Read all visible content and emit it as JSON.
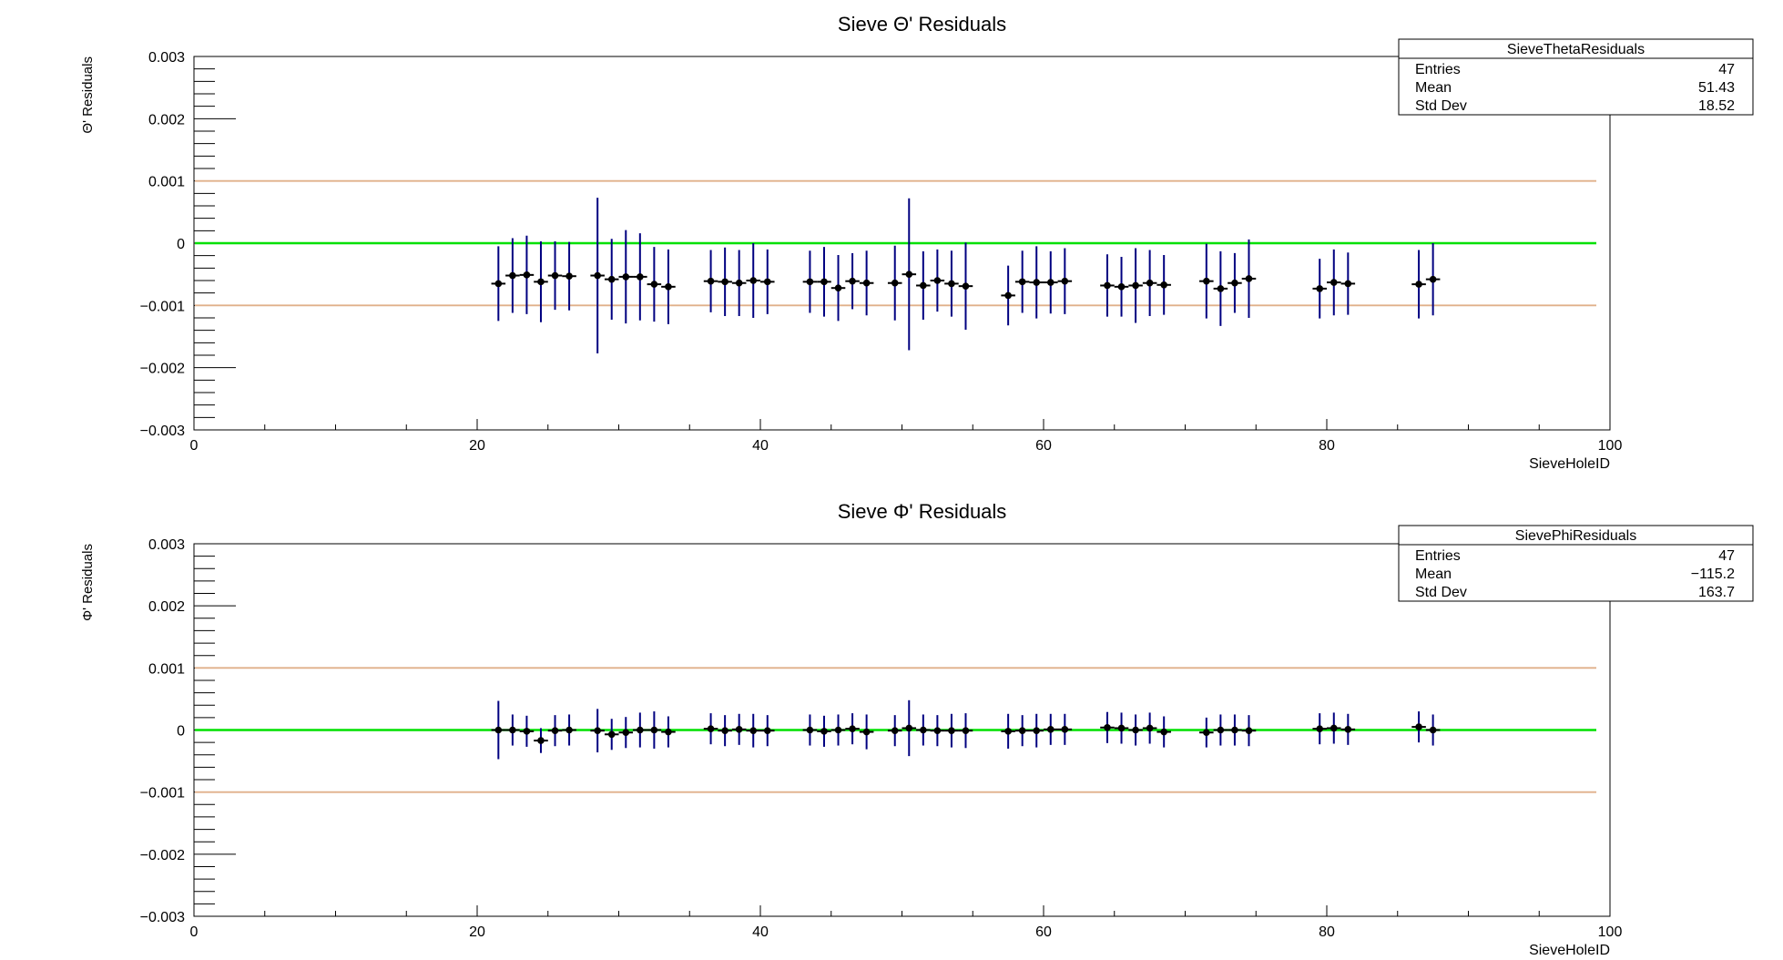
{
  "chart_data": [
    {
      "type": "scatter",
      "title": "Sieve Θ' Residuals",
      "xlabel": "SieveHoleID",
      "ylabel": "Θ' Residuals",
      "xlim": [
        0,
        100
      ],
      "ylim": [
        -0.003,
        0.003
      ],
      "x_ticks": [
        "0",
        "20",
        "40",
        "60",
        "80",
        "100"
      ],
      "y_ticks": [
        "0.003",
        "0.002",
        "0.001",
        "0",
        "−0.001",
        "−0.002",
        "−0.003"
      ],
      "grid": false,
      "reference_lines": [
        {
          "y": 0.001,
          "color": "#e0b08a"
        },
        {
          "y": 0.0,
          "color": "#00e000"
        },
        {
          "y": -0.001,
          "color": "#e0b08a"
        }
      ],
      "marker_color": "#000000",
      "errorbar_color": "#000080",
      "stats_box": {
        "name": "SieveThetaResiduals",
        "rows": [
          {
            "label": "Entries",
            "value": "47"
          },
          {
            "label": "Mean",
            "value": "51.43"
          },
          {
            "label": "Std Dev",
            "value": "18.52"
          }
        ]
      },
      "points": [
        {
          "x": 21.5,
          "y": -0.00065,
          "err": 0.0006
        },
        {
          "x": 22.5,
          "y": -0.00052,
          "err": 0.0006
        },
        {
          "x": 23.5,
          "y": -0.00051,
          "err": 0.00063
        },
        {
          "x": 24.5,
          "y": -0.00062,
          "err": 0.00065
        },
        {
          "x": 25.5,
          "y": -0.00052,
          "err": 0.00055
        },
        {
          "x": 26.5,
          "y": -0.00053,
          "err": 0.00055
        },
        {
          "x": 28.5,
          "y": -0.00052,
          "err": 0.00125
        },
        {
          "x": 29.5,
          "y": -0.00058,
          "err": 0.00065
        },
        {
          "x": 30.5,
          "y": -0.00054,
          "err": 0.00075
        },
        {
          "x": 31.5,
          "y": -0.00054,
          "err": 0.0007
        },
        {
          "x": 32.5,
          "y": -0.00066,
          "err": 0.0006
        },
        {
          "x": 33.5,
          "y": -0.0007,
          "err": 0.0006
        },
        {
          "x": 36.5,
          "y": -0.00061,
          "err": 0.0005
        },
        {
          "x": 37.5,
          "y": -0.00062,
          "err": 0.00055
        },
        {
          "x": 38.5,
          "y": -0.00064,
          "err": 0.00053
        },
        {
          "x": 39.5,
          "y": -0.0006,
          "err": 0.0006
        },
        {
          "x": 40.5,
          "y": -0.00062,
          "err": 0.00052
        },
        {
          "x": 43.5,
          "y": -0.00062,
          "err": 0.0005
        },
        {
          "x": 44.5,
          "y": -0.00062,
          "err": 0.00056
        },
        {
          "x": 45.5,
          "y": -0.00072,
          "err": 0.00053
        },
        {
          "x": 46.5,
          "y": -0.00061,
          "err": 0.00045
        },
        {
          "x": 47.5,
          "y": -0.00064,
          "err": 0.00052
        },
        {
          "x": 49.5,
          "y": -0.00064,
          "err": 0.0006
        },
        {
          "x": 50.5,
          "y": -0.0005,
          "err": 0.00122
        },
        {
          "x": 51.5,
          "y": -0.00068,
          "err": 0.00055
        },
        {
          "x": 52.5,
          "y": -0.0006,
          "err": 0.0005
        },
        {
          "x": 53.5,
          "y": -0.00065,
          "err": 0.00053
        },
        {
          "x": 54.5,
          "y": -0.00069,
          "err": 0.0007
        },
        {
          "x": 57.5,
          "y": -0.00084,
          "err": 0.00048
        },
        {
          "x": 58.5,
          "y": -0.00062,
          "err": 0.0005
        },
        {
          "x": 59.5,
          "y": -0.00063,
          "err": 0.00058
        },
        {
          "x": 60.5,
          "y": -0.00063,
          "err": 0.0005
        },
        {
          "x": 61.5,
          "y": -0.00061,
          "err": 0.00053
        },
        {
          "x": 64.5,
          "y": -0.00068,
          "err": 0.0005
        },
        {
          "x": 65.5,
          "y": -0.0007,
          "err": 0.00048
        },
        {
          "x": 66.5,
          "y": -0.00068,
          "err": 0.0006
        },
        {
          "x": 67.5,
          "y": -0.00064,
          "err": 0.00053
        },
        {
          "x": 68.5,
          "y": -0.00067,
          "err": 0.00048
        },
        {
          "x": 71.5,
          "y": -0.00061,
          "err": 0.0006
        },
        {
          "x": 72.5,
          "y": -0.00073,
          "err": 0.0006
        },
        {
          "x": 73.5,
          "y": -0.00064,
          "err": 0.00048
        },
        {
          "x": 74.5,
          "y": -0.00057,
          "err": 0.00063
        },
        {
          "x": 79.5,
          "y": -0.00073,
          "err": 0.00048
        },
        {
          "x": 80.5,
          "y": -0.00063,
          "err": 0.00053
        },
        {
          "x": 81.5,
          "y": -0.00065,
          "err": 0.0005
        },
        {
          "x": 86.5,
          "y": -0.00066,
          "err": 0.00055
        },
        {
          "x": 87.5,
          "y": -0.00058,
          "err": 0.00058
        }
      ]
    },
    {
      "type": "scatter",
      "title": "Sieve Φ' Residuals",
      "xlabel": "SieveHoleID",
      "ylabel": "Φ' Residuals",
      "xlim": [
        0,
        100
      ],
      "ylim": [
        -0.003,
        0.003
      ],
      "x_ticks": [
        "0",
        "20",
        "40",
        "60",
        "80",
        "100"
      ],
      "y_ticks": [
        "0.003",
        "0.002",
        "0.001",
        "0",
        "−0.001",
        "−0.002",
        "−0.003"
      ],
      "grid": false,
      "reference_lines": [
        {
          "y": 0.001,
          "color": "#e0b08a"
        },
        {
          "y": 0.0,
          "color": "#00e000"
        },
        {
          "y": -0.001,
          "color": "#e0b08a"
        }
      ],
      "marker_color": "#000000",
      "errorbar_color": "#000080",
      "stats_box": {
        "name": "SievePhiResiduals",
        "rows": [
          {
            "label": "Entries",
            "value": "47"
          },
          {
            "label": "Mean",
            "value": "−115.2"
          },
          {
            "label": "Std Dev",
            "value": "163.7"
          }
        ]
      },
      "points": [
        {
          "x": 21.5,
          "y": 0.0,
          "err": 0.00047
        },
        {
          "x": 22.5,
          "y": 0.0,
          "err": 0.00025
        },
        {
          "x": 23.5,
          "y": -2e-05,
          "err": 0.00025
        },
        {
          "x": 24.5,
          "y": -0.00017,
          "err": 0.0002
        },
        {
          "x": 25.5,
          "y": -1e-05,
          "err": 0.00025
        },
        {
          "x": 26.5,
          "y": 0.0,
          "err": 0.00025
        },
        {
          "x": 28.5,
          "y": -1e-05,
          "err": 0.00035
        },
        {
          "x": 29.5,
          "y": -7e-05,
          "err": 0.00025
        },
        {
          "x": 30.5,
          "y": -4e-05,
          "err": 0.00025
        },
        {
          "x": 31.5,
          "y": 0.0,
          "err": 0.00028
        },
        {
          "x": 32.5,
          "y": 0.0,
          "err": 0.0003
        },
        {
          "x": 33.5,
          "y": -3e-05,
          "err": 0.00025
        },
        {
          "x": 36.5,
          "y": 2e-05,
          "err": 0.00025
        },
        {
          "x": 37.5,
          "y": -1e-05,
          "err": 0.00025
        },
        {
          "x": 38.5,
          "y": 1e-05,
          "err": 0.00025
        },
        {
          "x": 39.5,
          "y": -1e-05,
          "err": 0.00027
        },
        {
          "x": 40.5,
          "y": -1e-05,
          "err": 0.00025
        },
        {
          "x": 43.5,
          "y": 0.0,
          "err": 0.00025
        },
        {
          "x": 44.5,
          "y": -2e-05,
          "err": 0.00025
        },
        {
          "x": 45.5,
          "y": 0.0,
          "err": 0.00025
        },
        {
          "x": 46.5,
          "y": 2e-05,
          "err": 0.00025
        },
        {
          "x": 47.5,
          "y": -3e-05,
          "err": 0.00028
        },
        {
          "x": 49.5,
          "y": -1e-05,
          "err": 0.00025
        },
        {
          "x": 50.5,
          "y": 3e-05,
          "err": 0.00045
        },
        {
          "x": 51.5,
          "y": 0.0,
          "err": 0.00025
        },
        {
          "x": 52.5,
          "y": -1e-05,
          "err": 0.00025
        },
        {
          "x": 53.5,
          "y": -1e-05,
          "err": 0.00027
        },
        {
          "x": 54.5,
          "y": -1e-05,
          "err": 0.00028
        },
        {
          "x": 57.5,
          "y": -2e-05,
          "err": 0.00028
        },
        {
          "x": 58.5,
          "y": -1e-05,
          "err": 0.00025
        },
        {
          "x": 59.5,
          "y": -1e-05,
          "err": 0.00027
        },
        {
          "x": 60.5,
          "y": 1e-05,
          "err": 0.00025
        },
        {
          "x": 61.5,
          "y": 1e-05,
          "err": 0.00025
        },
        {
          "x": 64.5,
          "y": 4e-05,
          "err": 0.00025
        },
        {
          "x": 65.5,
          "y": 3e-05,
          "err": 0.00025
        },
        {
          "x": 66.5,
          "y": 0.0,
          "err": 0.00025
        },
        {
          "x": 67.5,
          "y": 3e-05,
          "err": 0.00025
        },
        {
          "x": 68.5,
          "y": -3e-05,
          "err": 0.00025
        },
        {
          "x": 71.5,
          "y": -4e-05,
          "err": 0.00024
        },
        {
          "x": 72.5,
          "y": 0.0,
          "err": 0.00025
        },
        {
          "x": 73.5,
          "y": 0.0,
          "err": 0.00025
        },
        {
          "x": 74.5,
          "y": -1e-05,
          "err": 0.00025
        },
        {
          "x": 79.5,
          "y": 2e-05,
          "err": 0.00025
        },
        {
          "x": 80.5,
          "y": 3e-05,
          "err": 0.00025
        },
        {
          "x": 81.5,
          "y": 1e-05,
          "err": 0.00025
        },
        {
          "x": 86.5,
          "y": 5e-05,
          "err": 0.00025
        },
        {
          "x": 87.5,
          "y": 0.0,
          "err": 0.00025
        }
      ]
    }
  ]
}
